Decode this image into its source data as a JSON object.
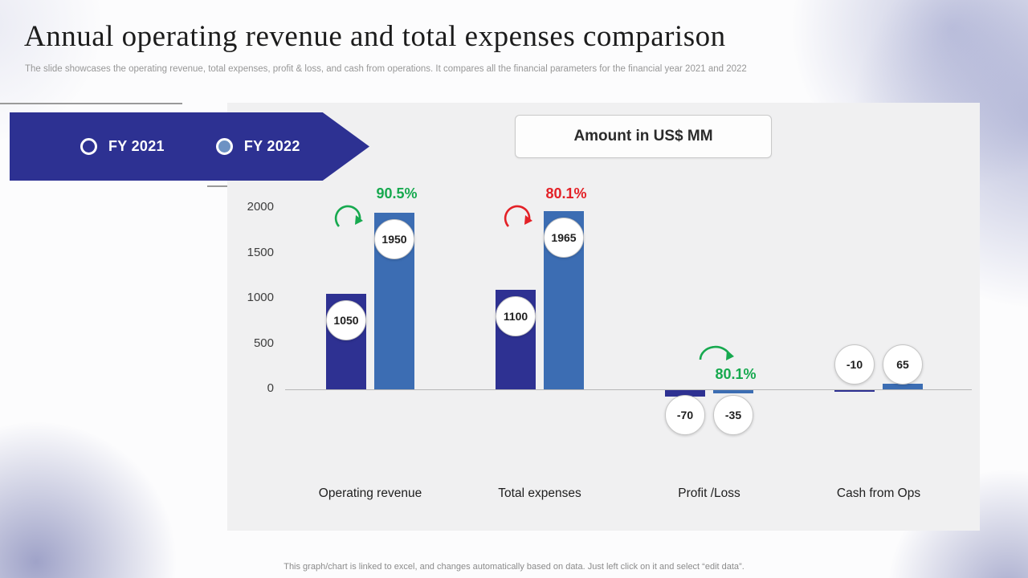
{
  "page": {
    "title": "Annual operating revenue and total expenses comparison",
    "subtitle": "The slide showcases the operating revenue, total expenses, profit & loss, and cash from operations. It compares all the financial parameters for the financial year 2021 and 2022",
    "footer": "This graph/chart is linked to excel,  and changes automatically based on data. Just left click on it and select “edit data”."
  },
  "legend": {
    "banner_color": "#2d3192",
    "items": [
      {
        "label": "FY 2021",
        "marker_fill": "transparent"
      },
      {
        "label": "FY 2022",
        "marker_fill": "#6d92c3"
      }
    ]
  },
  "amount_box": {
    "label": "Amount in US$ MM"
  },
  "chart_data": {
    "type": "bar",
    "title": "Amount in US$ MM",
    "categories": [
      "Operating revenue",
      "Total expenses",
      "Profit /Loss",
      "Cash from Ops"
    ],
    "series": [
      {
        "name": "FY 2021",
        "color": "#2e3192",
        "values": [
          1050,
          1100,
          -70,
          -10
        ]
      },
      {
        "name": "FY 2022",
        "color": "#3c6db3",
        "values": [
          1950,
          1965,
          -35,
          65
        ]
      }
    ],
    "yticks": [
      0,
      500,
      1000,
      1500,
      2000
    ],
    "ylim": [
      -400,
      2000
    ],
    "grid": false,
    "legend_position": "top-left",
    "annotations": [
      {
        "category_index": 0,
        "text": "90.5%",
        "color": "#17a94f",
        "arrow": "curl",
        "placement": "top"
      },
      {
        "category_index": 1,
        "text": "80.1%",
        "color": "#e32127",
        "arrow": "curl",
        "placement": "top"
      },
      {
        "category_index": 2,
        "text": "80.1%",
        "color": "#17a94f",
        "arrow": "arc",
        "placement": "mid"
      }
    ]
  }
}
